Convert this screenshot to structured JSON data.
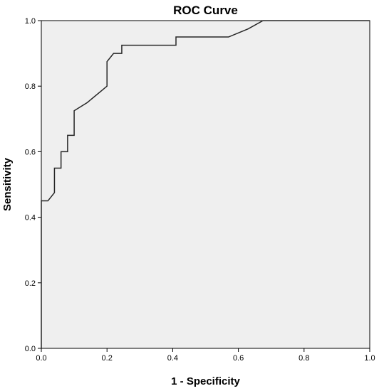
{
  "chart_data": {
    "type": "line",
    "title": "ROC Curve",
    "xlabel": "1 - Specificity",
    "ylabel": "Sensitivity",
    "xlim": [
      0.0,
      1.0
    ],
    "ylim": [
      0.0,
      1.0
    ],
    "xticks": [
      "0.0",
      "0.2",
      "0.4",
      "0.6",
      "0.8",
      "1.0"
    ],
    "yticks": [
      "0.0",
      "0.2",
      "0.4",
      "0.6",
      "0.8",
      "1.0"
    ],
    "grid": false,
    "plot_background": "#efefef",
    "line_color": "#262626",
    "series": [
      {
        "x": [
          0.0,
          0.0,
          0.0,
          0.02,
          0.04,
          0.04,
          0.06,
          0.06,
          0.08,
          0.08,
          0.1,
          0.1,
          0.14,
          0.2,
          0.2,
          0.22,
          0.22,
          0.245,
          0.245,
          0.41,
          0.41,
          0.57,
          0.63,
          0.675,
          0.69,
          1.0
        ],
        "y": [
          0.0,
          0.45,
          0.45,
          0.45,
          0.475,
          0.55,
          0.55,
          0.6,
          0.6,
          0.65,
          0.65,
          0.725,
          0.75,
          0.8,
          0.875,
          0.9,
          0.9,
          0.9,
          0.925,
          0.925,
          0.95,
          0.95,
          0.975,
          1.0,
          1.0,
          1.0
        ]
      }
    ]
  }
}
